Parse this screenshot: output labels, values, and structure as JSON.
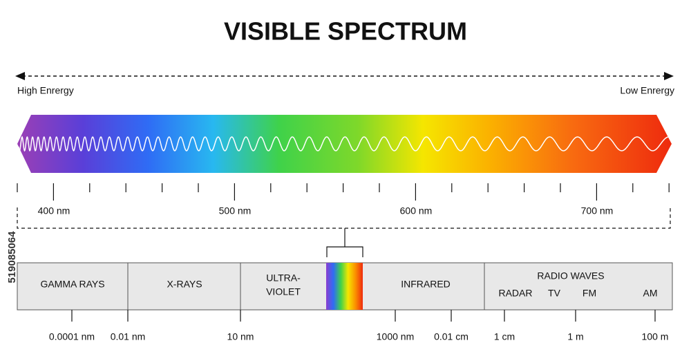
{
  "header": {
    "title": "VISIBLE SPECTRUM"
  },
  "energy": {
    "high": "High Enrergy",
    "low": "Low Enrergy"
  },
  "visible_ticks": [
    "400 nm",
    "500 nm",
    "600 nm",
    "700 nm"
  ],
  "bands": {
    "gamma": "GAMMA RAYS",
    "xray": "X-RAYS",
    "uv_line1": "ULTRA-",
    "uv_line2": "VIOLET",
    "infrared": "INFRARED",
    "radio": "RADIO WAVES",
    "radio_sub": [
      "RADAR",
      "TV",
      "FM",
      "AM"
    ]
  },
  "scale": [
    "0.0001 nm",
    "0.01 nm",
    "10 nm",
    "1000 nm",
    "0.01 cm",
    "1 cm",
    "1 m",
    "100 m"
  ],
  "stock_id": "519085064"
}
